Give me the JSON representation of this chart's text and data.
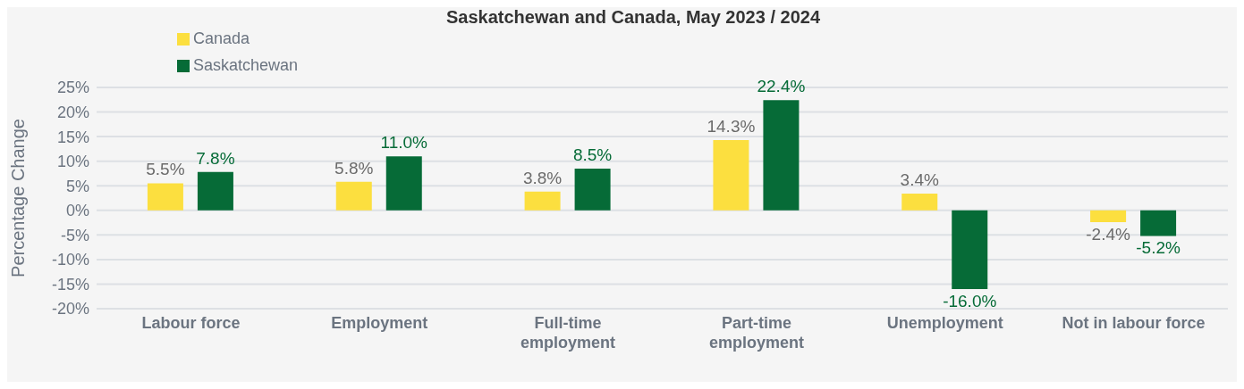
{
  "chart_data": {
    "type": "bar",
    "title": "Saskatchewan and Canada, May 2023 / 2024",
    "ylabel": "Percentage Change",
    "categories": [
      "Labour force",
      "Employment",
      "Full-time employment",
      "Part-time employment",
      "Unemployment",
      "Not in labour force"
    ],
    "series": [
      {
        "name": "Canada",
        "color": "#fcdf3f",
        "values": [
          5.5,
          5.8,
          3.8,
          14.3,
          3.4,
          -2.4
        ],
        "value_labels": [
          "5.5%",
          "5.8%",
          "3.8%",
          "14.3%",
          "3.4%",
          "-2.4%"
        ]
      },
      {
        "name": "Saskatchewan",
        "color": "#066b37",
        "values": [
          7.8,
          11.0,
          8.5,
          22.4,
          -16.0,
          -5.2
        ],
        "value_labels": [
          "7.8%",
          "11.0%",
          "8.5%",
          "22.4%",
          "-16.0%",
          "-5.2%"
        ]
      }
    ],
    "ylim": [
      -20,
      25
    ],
    "yticks": [
      {
        "value": -20,
        "label": "-20%"
      },
      {
        "value": -15,
        "label": "-15%"
      },
      {
        "value": -10,
        "label": "-10%"
      },
      {
        "value": -5,
        "label": "-5%"
      },
      {
        "value": 0,
        "label": "0%"
      },
      {
        "value": 5,
        "label": "5%"
      },
      {
        "value": 10,
        "label": "10%"
      },
      {
        "value": 15,
        "label": "15%"
      },
      {
        "value": 20,
        "label": "20%"
      },
      {
        "value": 25,
        "label": "25%"
      }
    ],
    "grid": "y",
    "legend": "top left"
  }
}
